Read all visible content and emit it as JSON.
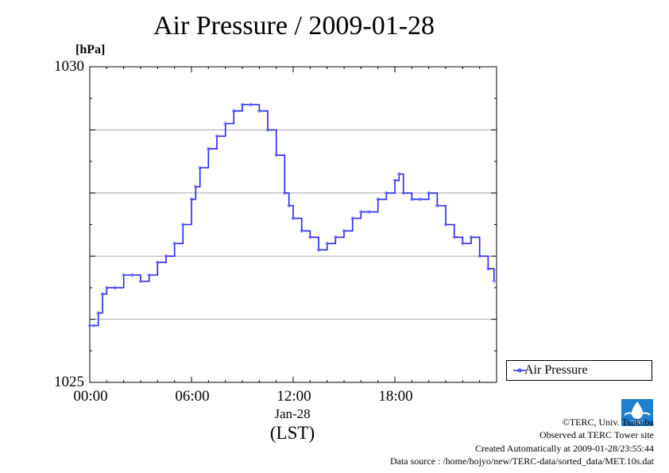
{
  "header": {
    "title": "Air Pressure / 2009-01-28",
    "unit": "[hPa]"
  },
  "axes": {
    "y_ticks": [
      "1030",
      "1025"
    ],
    "x_ticks": [
      "00:00",
      "06:00",
      "12:00",
      "18:00"
    ],
    "date_label": "Jan-28",
    "tz_label": "(LST)"
  },
  "legend": {
    "label": "Air Pressure"
  },
  "footer": {
    "copyright": "©TERC, Univ. Tsukuba",
    "observed": "Observed at TERC Tower site",
    "created": "Created Automatically at 2009-01-28/23:55:44",
    "source": "Data source : /home/hojyo/new/TERC-data/sorted_data/MET.10s.dat"
  },
  "logo": {
    "text": "TERC",
    "icon": "terc-logo-icon"
  },
  "colors": {
    "series": "#2222ff",
    "points": "#7777ff",
    "grid": "#aaaaaa",
    "logo": "#1e7fd0"
  },
  "chart_data": {
    "type": "line",
    "title": "Air Pressure / 2009-01-28",
    "xlabel": "Jan-28 (LST)",
    "ylabel": "[hPa]",
    "xlim": [
      0,
      24
    ],
    "ylim": [
      1025,
      1030
    ],
    "grid": true,
    "legend_position": "bottom-right-outside",
    "series": [
      {
        "name": "Air Pressure",
        "marker": "small-circle",
        "x": [
          0,
          0.25,
          0.5,
          0.75,
          1.0,
          1.5,
          2.0,
          2.5,
          3.0,
          3.5,
          4.0,
          4.5,
          5.0,
          5.5,
          6.0,
          6.25,
          6.5,
          7.0,
          7.5,
          8.0,
          8.5,
          9.0,
          9.5,
          10.0,
          10.5,
          11.0,
          11.5,
          11.75,
          12.0,
          12.5,
          13.0,
          13.5,
          14.0,
          14.5,
          15.0,
          15.5,
          16.0,
          16.5,
          17.0,
          17.5,
          18.0,
          18.25,
          18.5,
          19.0,
          19.5,
          20.0,
          20.5,
          21.0,
          21.5,
          22.0,
          22.5,
          23.0,
          23.5,
          23.85
        ],
        "values": [
          1025.9,
          1025.9,
          1026.1,
          1026.4,
          1026.5,
          1026.5,
          1026.7,
          1026.7,
          1026.6,
          1026.7,
          1026.9,
          1027.0,
          1027.2,
          1027.5,
          1027.9,
          1028.1,
          1028.4,
          1028.7,
          1028.9,
          1029.1,
          1029.3,
          1029.4,
          1029.4,
          1029.3,
          1029.0,
          1028.6,
          1028.0,
          1027.8,
          1027.6,
          1027.4,
          1027.3,
          1027.1,
          1027.2,
          1027.3,
          1027.4,
          1027.6,
          1027.7,
          1027.7,
          1027.9,
          1028.0,
          1028.2,
          1028.3,
          1028.0,
          1027.9,
          1027.9,
          1028.0,
          1027.8,
          1027.5,
          1027.3,
          1027.2,
          1027.3,
          1027.0,
          1026.8,
          1026.6
        ]
      }
    ]
  }
}
